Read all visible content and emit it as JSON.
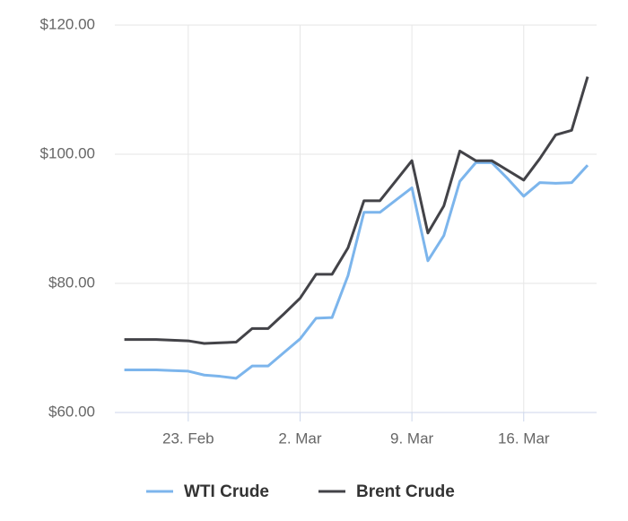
{
  "chart_data": {
    "type": "line",
    "categories": [
      null,
      null,
      null,
      null,
      "23. Feb",
      null,
      null,
      null,
      null,
      null,
      null,
      "2. Mar",
      null,
      null,
      null,
      null,
      null,
      null,
      "9. Mar",
      null,
      null,
      null,
      null,
      null,
      null,
      "16. Mar",
      null,
      null,
      null,
      null
    ],
    "series": [
      {
        "name": "WTI Crude",
        "color": "#7cb5ec",
        "values": [
          66.6,
          66.6,
          66.6,
          66.5,
          66.4,
          65.8,
          65.6,
          65.3,
          67.2,
          67.2,
          69.3,
          71.4,
          74.6,
          74.7,
          81.2,
          91.0,
          91.0,
          92.9,
          94.8,
          83.5,
          87.4,
          95.8,
          98.7,
          98.7,
          96.2,
          93.5,
          95.6,
          95.5,
          95.6,
          98.3
        ]
      },
      {
        "name": "Brent Crude",
        "color": "#434348",
        "values": [
          71.3,
          71.3,
          71.3,
          71.2,
          71.1,
          70.7,
          70.8,
          70.9,
          73.0,
          73.0,
          75.3,
          77.7,
          81.4,
          81.4,
          85.5,
          92.8,
          92.8,
          95.9,
          99.0,
          87.8,
          92.0,
          100.5,
          99.0,
          99.0,
          97.5,
          96.0,
          99.3,
          103.0,
          103.7,
          112.0
        ]
      }
    ],
    "ylim": [
      60,
      120
    ],
    "yticks": [
      {
        "value": 60,
        "label": "$60.00"
      },
      {
        "value": 80,
        "label": "$80.00"
      },
      {
        "value": 100,
        "label": "$100.00"
      },
      {
        "value": 120,
        "label": "$120.00"
      }
    ],
    "grid": true
  }
}
